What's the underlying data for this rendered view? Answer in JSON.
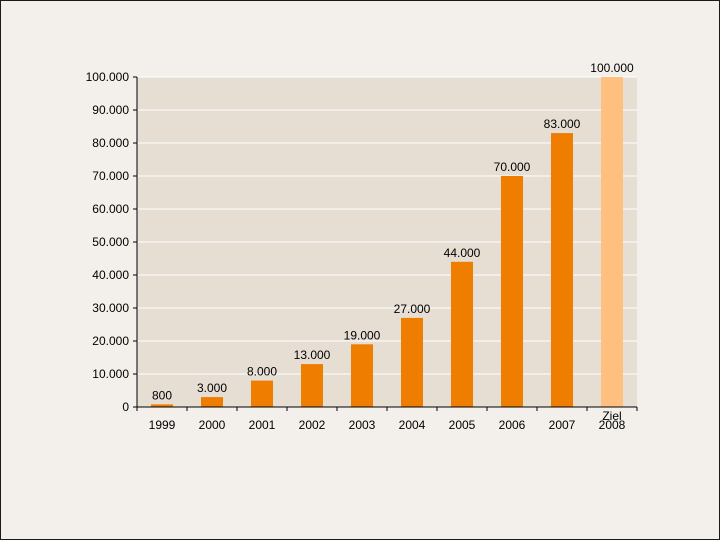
{
  "chart_data": {
    "type": "bar",
    "title": "",
    "xlabel": "",
    "ylabel": "",
    "categories": [
      "1999",
      "2000",
      "2001",
      "2002",
      "2003",
      "2004",
      "2005",
      "2006",
      "2007",
      "Ziel 2008"
    ],
    "category_lines": [
      [
        "1999"
      ],
      [
        "2000"
      ],
      [
        "2001"
      ],
      [
        "2002"
      ],
      [
        "2003"
      ],
      [
        "2004"
      ],
      [
        "2005"
      ],
      [
        "2006"
      ],
      [
        "2007"
      ],
      [
        "Ziel",
        "2008"
      ]
    ],
    "values": [
      800,
      3000,
      8000,
      13000,
      19000,
      27000,
      44000,
      70000,
      83000,
      100000
    ],
    "value_labels": [
      "800",
      "3.000",
      "8.000",
      "13.000",
      "19.000",
      "27.000",
      "44.000",
      "70.000",
      "83.000",
      "100.000"
    ],
    "highlight_index": 9,
    "ylim": [
      0,
      100000
    ],
    "yticks": [
      0,
      10000,
      20000,
      30000,
      40000,
      50000,
      60000,
      70000,
      80000,
      90000,
      100000
    ],
    "ytick_labels": [
      "0",
      "10.000",
      "20.000",
      "30.000",
      "40.000",
      "50.000",
      "60.000",
      "70.000",
      "80.000",
      "90.000",
      "100.000"
    ],
    "grid": true,
    "colors": {
      "bar": "#ef7d00",
      "bar_highlight": "#ffc07f",
      "plot_bg": "#e6ddd3",
      "grid": "#ffffff",
      "axis": "#000000"
    }
  }
}
